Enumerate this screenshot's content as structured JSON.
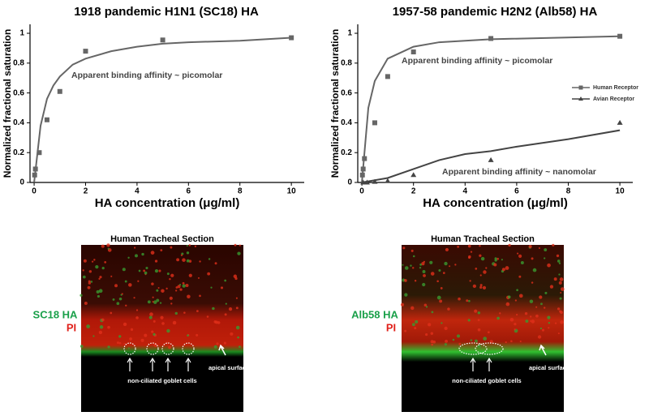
{
  "chart_data": [
    {
      "type": "scatter",
      "title": "1918 pandemic H1N1 (SC18) HA",
      "x_label": "HA concentration (μg/ml)",
      "y_label": "Normalized fractional saturation",
      "annotations": [
        "Apparent binding affinity ~ picomolar"
      ],
      "xlim": [
        -0.16,
        10.5
      ],
      "ylim": [
        0,
        1.06
      ],
      "xticks": [
        0,
        2,
        4,
        6,
        8,
        10
      ],
      "yticks": [
        0,
        0.2,
        0.4,
        0.6,
        0.8,
        1
      ],
      "series": [
        {
          "color": "#666666",
          "marker": "square",
          "x": [
            0.02,
            0.05,
            0.2,
            0.5,
            1,
            2,
            5,
            10
          ],
          "values": [
            0.05,
            0.09,
            0.2,
            0.42,
            0.61,
            0.88,
            0.955,
            0.97
          ],
          "fit_x": [
            0,
            0.25,
            0.5,
            0.75,
            1,
            1.5,
            2,
            3,
            4,
            5,
            6,
            8,
            10
          ],
          "fit_values": [
            0,
            0.38,
            0.56,
            0.65,
            0.71,
            0.79,
            0.83,
            0.88,
            0.91,
            0.93,
            0.94,
            0.95,
            0.97
          ]
        }
      ]
    },
    {
      "type": "scatter",
      "title": "1957-58 pandemic H2N2 (Alb58) HA",
      "x_label": "HA concentration (μg/ml)",
      "y_label": "Normalized fractional saturation",
      "annotations": [
        "Apparent binding affinity ~ picomolar",
        "Apparent binding affinity ~ nanomolar"
      ],
      "xlim": [
        -0.16,
        10.5
      ],
      "ylim": [
        0,
        1.06
      ],
      "xticks": [
        0,
        2,
        4,
        6,
        8,
        10
      ],
      "yticks": [
        0,
        0.2,
        0.4,
        0.6,
        0.8,
        1
      ],
      "legend": "right",
      "series": [
        {
          "name": "Human Receptor",
          "color": "#666666",
          "marker": "square",
          "x": [
            0.02,
            0.05,
            0.1,
            0.5,
            1,
            2,
            5,
            10
          ],
          "values": [
            0.05,
            0.09,
            0.16,
            0.4,
            0.71,
            0.875,
            0.965,
            0.98
          ],
          "fit_x": [
            0,
            0.25,
            0.5,
            1,
            2,
            3,
            5,
            10
          ],
          "fit_values": [
            0,
            0.5,
            0.68,
            0.83,
            0.91,
            0.94,
            0.96,
            0.98
          ]
        },
        {
          "name": "Avian Receptor",
          "color": "#444444",
          "marker": "triangle",
          "x": [
            0.05,
            0.2,
            0.5,
            1,
            2,
            5,
            10
          ],
          "values": [
            0,
            0,
            0.005,
            0.01,
            0.05,
            0.15,
            0.4
          ],
          "fit_x": [
            0,
            1,
            2,
            3,
            4,
            5,
            6,
            8,
            10
          ],
          "fit_values": [
            0,
            0.03,
            0.09,
            0.15,
            0.19,
            0.21,
            0.24,
            0.29,
            0.35
          ]
        }
      ]
    }
  ],
  "panels": [
    {
      "title": "Human Tracheal Section",
      "stain": "SC18 HA",
      "counterstain": "PI",
      "surface_label": "apical surface",
      "cell_label": "non-ciliated goblet cells"
    },
    {
      "title": "Human Tracheal Section",
      "stain": "Alb58 HA",
      "counterstain": "PI",
      "surface_label": "apical surface",
      "cell_label": "non-ciliated goblet cells"
    }
  ]
}
